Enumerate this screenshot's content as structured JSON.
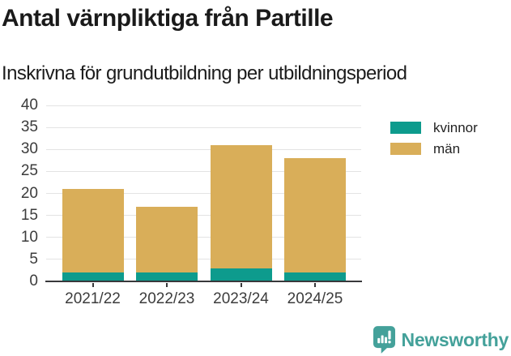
{
  "chart_data": {
    "type": "bar",
    "stacked": true,
    "title": "Antal värnpliktiga från Partille",
    "subtitle": "Inskrivna för grundutbildning per utbildningsperiod",
    "categories": [
      "2021/22",
      "2022/23",
      "2023/24",
      "2024/25"
    ],
    "series": [
      {
        "name": "kvinnor",
        "color": "#0D9B8D",
        "values": [
          2,
          2,
          3,
          2
        ]
      },
      {
        "name": "män",
        "color": "#D9AE59",
        "values": [
          19,
          15,
          28,
          26
        ]
      }
    ],
    "totals": [
      21,
      17,
      31,
      28
    ],
    "xlabel": "",
    "ylabel": "",
    "ylim": [
      0,
      40
    ],
    "yticks": [
      0,
      5,
      10,
      15,
      20,
      25,
      30,
      35,
      40
    ],
    "grid": "horizontal",
    "legend_position": "right-outside-top"
  },
  "footer": {
    "brand": "Newsworthy",
    "brand_color": "#44A19A",
    "logo_icon": "bar-chart-pin-icon"
  },
  "colors": {
    "text": "#1a1a1a",
    "axis_labels": "#3c3c3c",
    "axis_line": "#38383b",
    "gridline": "#e3e3e3"
  }
}
